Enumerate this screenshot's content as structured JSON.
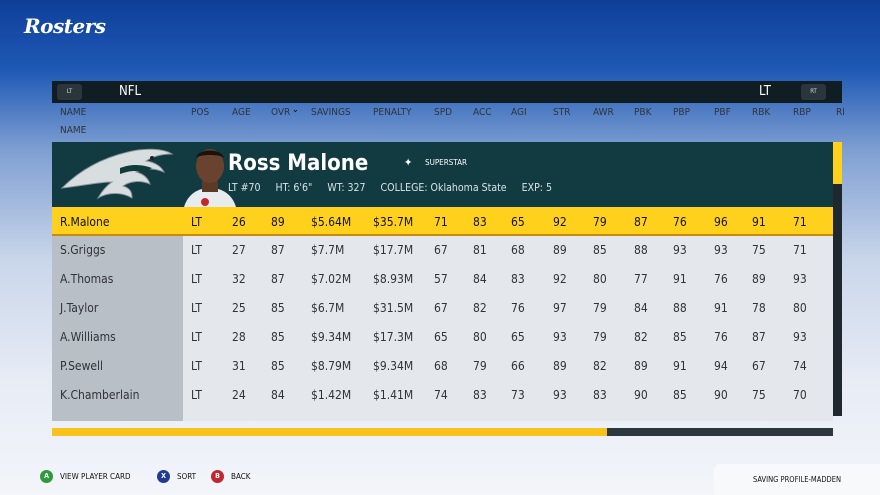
{
  "screen_title": "Rosters",
  "topbar": {
    "lb": "LT",
    "rb": "RT",
    "league": "NFL",
    "position": "LT"
  },
  "columns": [
    "NAME",
    "POS",
    "AGE",
    "OVR",
    "SAVINGS",
    "PENALTY",
    "SPD",
    "ACC",
    "AGI",
    "STR",
    "AWR",
    "PBK",
    "PBP",
    "PBF",
    "RBK",
    "RBP",
    "RI"
  ],
  "sort_by": "NAME",
  "ovr_sort_indicator": "⌄",
  "player_card": {
    "name": "Ross Malone",
    "tier": "SUPERSTAR",
    "position": "LT #70",
    "height": "HT: 6'6\"",
    "weight": "WT: 327",
    "college": "COLLEGE: Oklahoma State",
    "experience": "EXP: 5",
    "team_logo": "eagle-icon",
    "star_icon": "star-icon",
    "accent_color": "#ffd11c",
    "card_color": "#113b40"
  },
  "players": [
    {
      "name": "R.Malone",
      "pos": "LT",
      "age": "26",
      "ovr": "89",
      "savings": "$5.64M",
      "penalty": "$35.7M",
      "spd": "71",
      "acc": "83",
      "agi": "65",
      "str": "92",
      "awr": "79",
      "pbk": "87",
      "pbp": "76",
      "pbf": "96",
      "rbk": "91",
      "rbp": "71"
    },
    {
      "name": "S.Griggs",
      "pos": "LT",
      "age": "27",
      "ovr": "87",
      "savings": "$7.7M",
      "penalty": "$17.7M",
      "spd": "67",
      "acc": "81",
      "agi": "68",
      "str": "89",
      "awr": "85",
      "pbk": "88",
      "pbp": "93",
      "pbf": "93",
      "rbk": "75",
      "rbp": "71"
    },
    {
      "name": "A.Thomas",
      "pos": "LT",
      "age": "32",
      "ovr": "87",
      "savings": "$7.02M",
      "penalty": "$8.93M",
      "spd": "57",
      "acc": "84",
      "agi": "83",
      "str": "92",
      "awr": "80",
      "pbk": "77",
      "pbp": "91",
      "pbf": "76",
      "rbk": "89",
      "rbp": "93"
    },
    {
      "name": "J.Taylor",
      "pos": "LT",
      "age": "25",
      "ovr": "85",
      "savings": "$6.7M",
      "penalty": "$31.5M",
      "spd": "67",
      "acc": "82",
      "agi": "76",
      "str": "97",
      "awr": "79",
      "pbk": "84",
      "pbp": "88",
      "pbf": "91",
      "rbk": "78",
      "rbp": "80"
    },
    {
      "name": "A.Williams",
      "pos": "LT",
      "age": "28",
      "ovr": "85",
      "savings": "$9.34M",
      "penalty": "$17.3M",
      "spd": "65",
      "acc": "80",
      "agi": "65",
      "str": "93",
      "awr": "79",
      "pbk": "82",
      "pbp": "85",
      "pbf": "76",
      "rbk": "87",
      "rbp": "93"
    },
    {
      "name": "P.Sewell",
      "pos": "LT",
      "age": "31",
      "ovr": "85",
      "savings": "$8.79M",
      "penalty": "$9.34M",
      "spd": "68",
      "acc": "79",
      "agi": "66",
      "str": "89",
      "awr": "82",
      "pbk": "89",
      "pbp": "91",
      "pbf": "94",
      "rbk": "67",
      "rbp": "74"
    },
    {
      "name": "K.Chamberlain",
      "pos": "LT",
      "age": "24",
      "ovr": "84",
      "savings": "$1.42M",
      "penalty": "$1.41M",
      "spd": "74",
      "acc": "83",
      "agi": "73",
      "str": "93",
      "awr": "83",
      "pbk": "90",
      "pbp": "85",
      "pbf": "90",
      "rbk": "75",
      "rbp": "70"
    }
  ],
  "selected_index": 0,
  "progress": 0.71,
  "footer": {
    "a_button": "A",
    "a_label": "VIEW PLAYER CARD",
    "x_button": "X",
    "x_label": "SORT",
    "b_button": "B",
    "b_label": "BACK",
    "status": "SAVING PROFILE-MADDEN",
    "a_color": "#2e9a3b",
    "x_color": "#233b8f",
    "b_color": "#c4262d"
  }
}
